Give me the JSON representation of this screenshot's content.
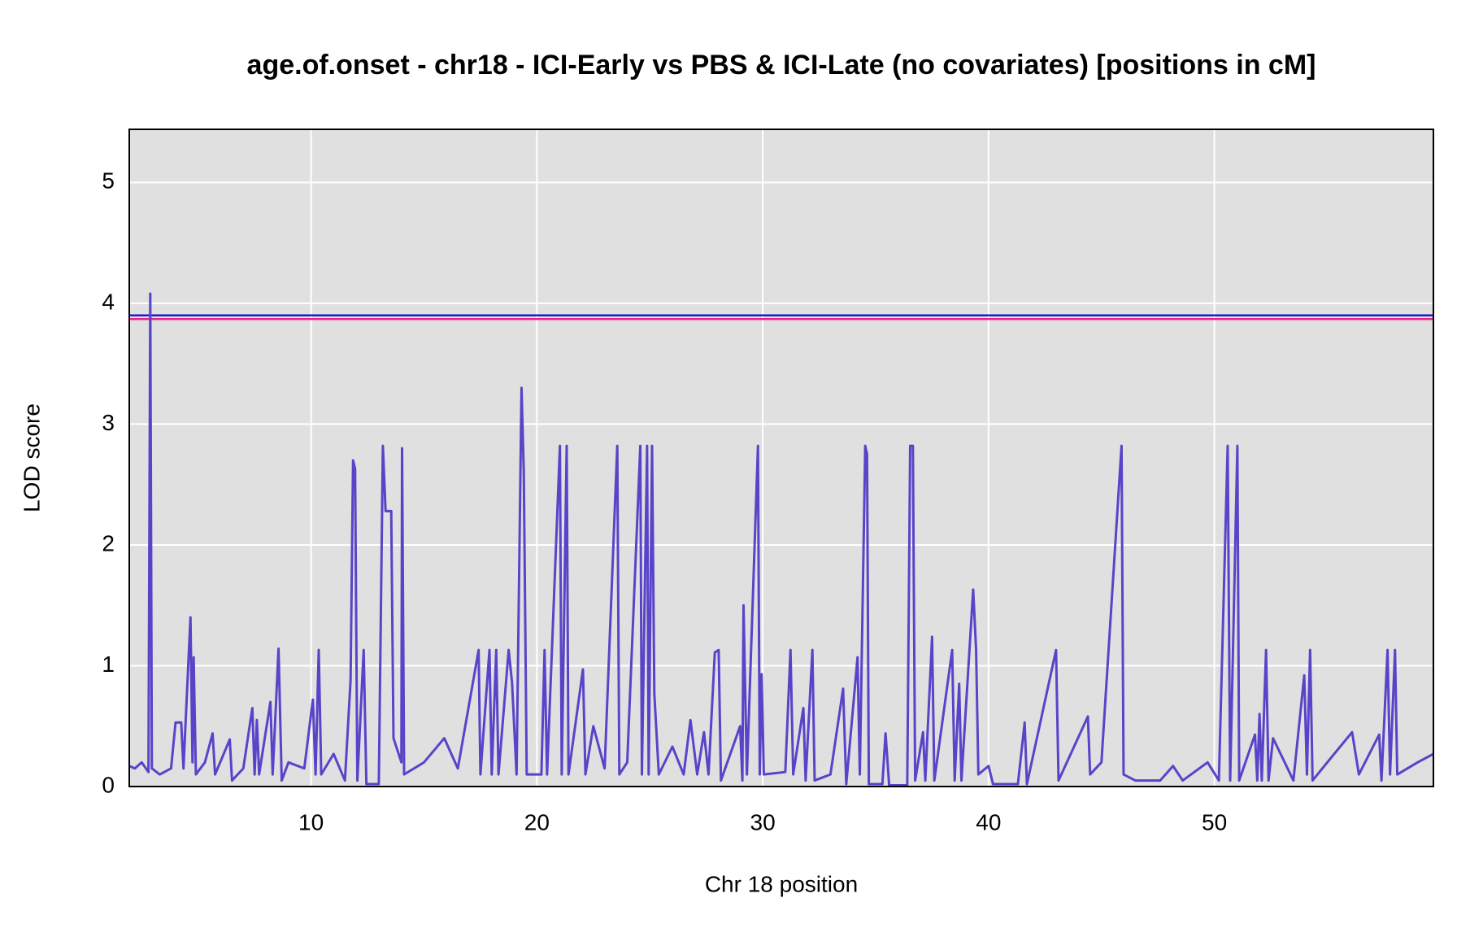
{
  "chart_data": {
    "type": "line",
    "title": "age.of.onset - chr18 - ICI-Early vs PBS & ICI-Late (no covariates) [positions in cM]",
    "xlabel": "Chr 18 position",
    "ylabel": "LOD score",
    "xlim": [
      1.95,
      59.7
    ],
    "ylim": [
      0,
      5.44
    ],
    "xticks": [
      10,
      20,
      30,
      40,
      50
    ],
    "yticks": [
      0,
      1,
      2,
      3,
      4,
      5
    ],
    "grid": true,
    "color": "#5844c8",
    "thresholds": [
      {
        "value": 3.9,
        "color": "#1a1ad0"
      },
      {
        "value": 3.87,
        "color": "#e8208c"
      }
    ],
    "x": [
      1.95,
      2.2,
      2.5,
      2.8,
      2.88,
      2.95,
      3.3,
      3.8,
      4.0,
      4.25,
      4.35,
      4.66,
      4.75,
      4.8,
      4.9,
      5.3,
      5.64,
      5.75,
      6.4,
      6.5,
      7.0,
      7.4,
      7.5,
      7.6,
      7.7,
      8.2,
      8.3,
      8.56,
      8.7,
      9.0,
      9.7,
      10.08,
      10.2,
      10.34,
      10.45,
      11.0,
      11.5,
      11.75,
      11.86,
      11.95,
      12.05,
      12.33,
      12.45,
      13.0,
      13.18,
      13.3,
      13.55,
      13.65,
      14.0,
      14.03,
      14.12,
      15.0,
      15.9,
      16.5,
      17.42,
      17.5,
      17.9,
      18.0,
      18.2,
      18.3,
      18.75,
      18.9,
      19.1,
      19.32,
      19.42,
      19.55,
      20.2,
      20.34,
      20.45,
      21.02,
      21.1,
      21.32,
      21.4,
      22.04,
      22.15,
      22.5,
      23.0,
      23.56,
      23.65,
      24.0,
      24.58,
      24.65,
      24.88,
      24.95,
      25.1,
      25.2,
      25.4,
      26.0,
      26.5,
      26.8,
      27.1,
      27.4,
      27.6,
      27.88,
      28.05,
      28.15,
      29.0,
      29.1,
      29.15,
      29.3,
      29.79,
      29.87,
      29.95,
      30.05,
      31.0,
      31.23,
      31.35,
      31.8,
      31.9,
      32.2,
      32.3,
      33.0,
      33.56,
      33.7,
      34.2,
      34.3,
      34.54,
      34.62,
      34.7,
      35.3,
      35.44,
      35.6,
      36.4,
      36.53,
      36.65,
      36.75,
      37.1,
      37.2,
      37.5,
      37.6,
      38.39,
      38.5,
      38.7,
      38.8,
      39.32,
      39.45,
      39.55,
      40.0,
      40.2,
      41.3,
      41.6,
      41.7,
      42.99,
      43.1,
      44.4,
      44.5,
      45.0,
      45.89,
      45.98,
      46.5,
      47.6,
      48.17,
      48.6,
      49.7,
      50.2,
      50.59,
      50.7,
      51.02,
      51.1,
      51.8,
      51.9,
      52.0,
      52.1,
      52.29,
      52.4,
      52.6,
      53.5,
      53.98,
      54.1,
      54.24,
      54.35,
      55.0,
      56.1,
      56.4,
      57.3,
      57.4,
      57.67,
      57.78,
      58.0,
      58.1,
      59.0,
      59.7
    ],
    "values": [
      0.17,
      0.15,
      0.2,
      0.12,
      4.08,
      0.15,
      0.1,
      0.15,
      0.53,
      0.53,
      0.15,
      1.4,
      0.2,
      1.07,
      0.1,
      0.2,
      0.44,
      0.1,
      0.39,
      0.05,
      0.15,
      0.65,
      0.1,
      0.55,
      0.1,
      0.7,
      0.1,
      1.14,
      0.05,
      0.2,
      0.15,
      0.72,
      0.1,
      1.13,
      0.1,
      0.27,
      0.05,
      0.88,
      2.7,
      2.63,
      0.05,
      1.13,
      0.02,
      0.02,
      2.82,
      2.28,
      2.28,
      0.4,
      0.2,
      2.8,
      0.1,
      0.2,
      0.4,
      0.15,
      1.13,
      0.1,
      1.13,
      0.1,
      1.13,
      0.1,
      1.13,
      0.86,
      0.1,
      3.3,
      2.6,
      0.1,
      0.1,
      1.13,
      0.1,
      2.82,
      0.1,
      2.82,
      0.1,
      0.97,
      0.1,
      0.5,
      0.15,
      2.82,
      0.1,
      0.2,
      2.82,
      0.1,
      2.82,
      0.1,
      2.82,
      0.77,
      0.1,
      0.33,
      0.1,
      0.55,
      0.1,
      0.45,
      0.1,
      1.11,
      1.13,
      0.05,
      0.5,
      0.05,
      1.5,
      0.1,
      2.82,
      0.1,
      0.93,
      0.1,
      0.12,
      1.13,
      0.1,
      0.65,
      0.05,
      1.13,
      0.05,
      0.1,
      0.81,
      0.02,
      1.07,
      0.1,
      2.82,
      2.75,
      0.02,
      0.02,
      0.44,
      0.01,
      0.01,
      2.82,
      2.82,
      0.05,
      0.45,
      0.05,
      1.24,
      0.05,
      1.13,
      0.05,
      0.85,
      0.05,
      1.63,
      1.13,
      0.1,
      0.17,
      0.02,
      0.02,
      0.53,
      0.02,
      1.13,
      0.05,
      0.58,
      0.1,
      0.2,
      2.82,
      0.1,
      0.05,
      0.05,
      0.17,
      0.05,
      0.2,
      0.05,
      2.82,
      0.05,
      2.82,
      0.05,
      0.43,
      0.05,
      0.6,
      0.05,
      1.13,
      0.05,
      0.4,
      0.05,
      0.92,
      0.1,
      1.13,
      0.05,
      0.2,
      0.45,
      0.1,
      0.43,
      0.05,
      1.13,
      0.1,
      1.13,
      0.1,
      0.2,
      0.27
    ]
  }
}
